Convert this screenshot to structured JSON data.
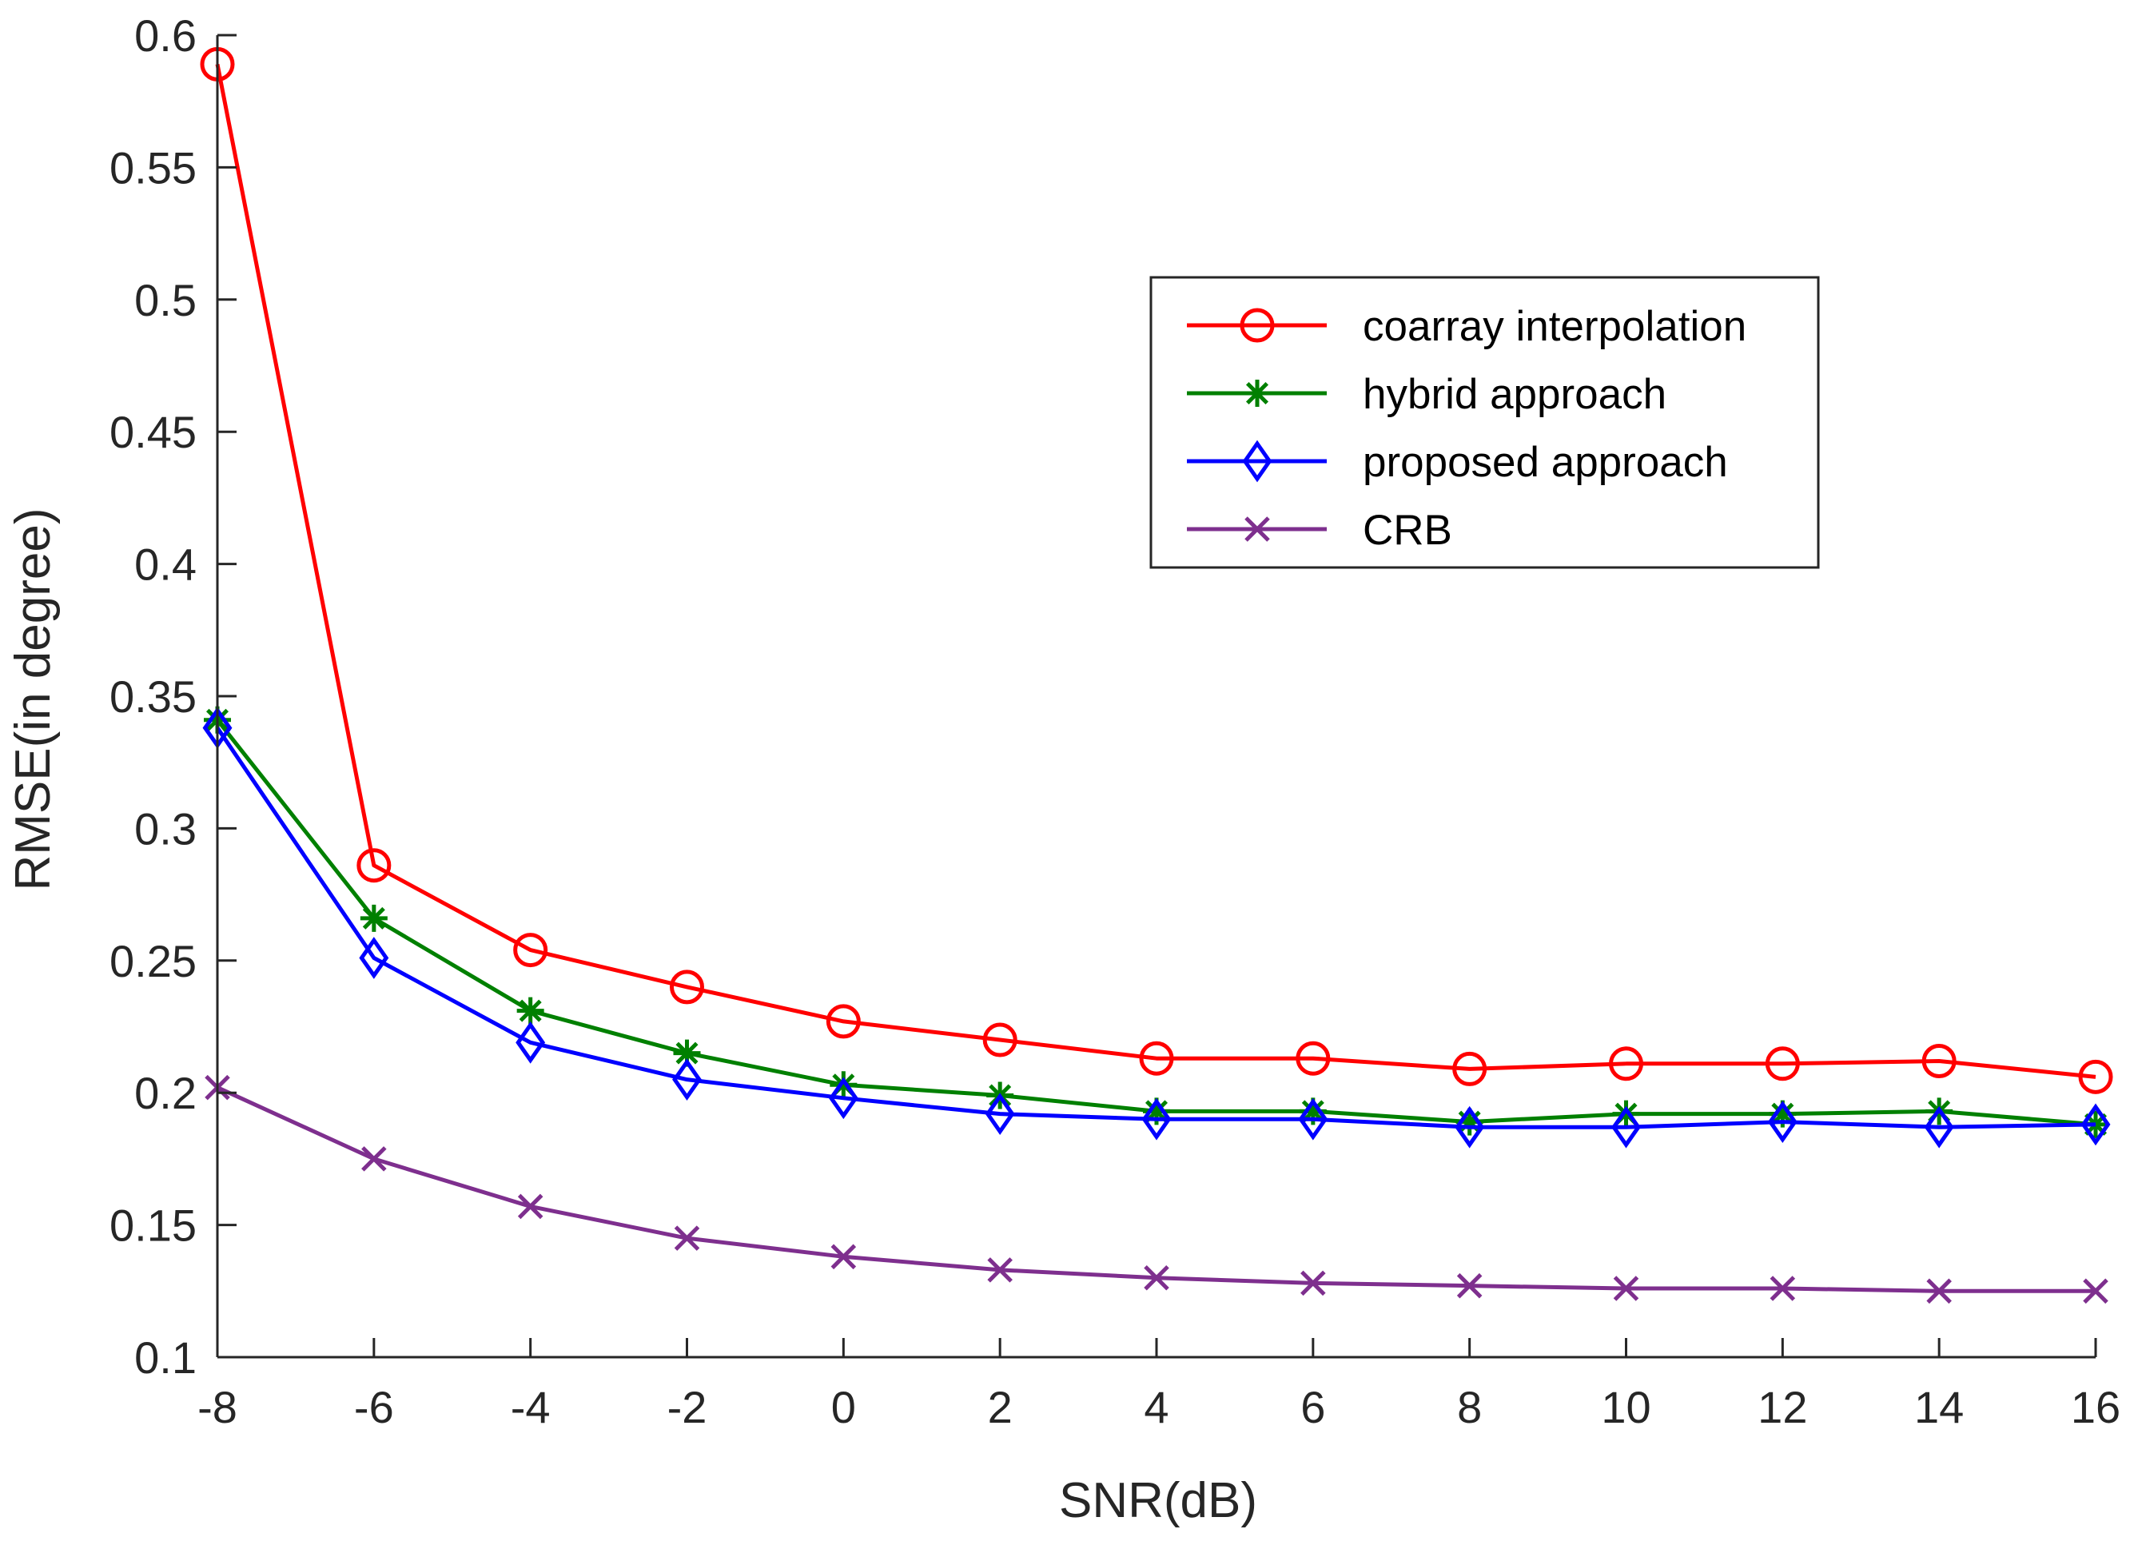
{
  "chart_data": {
    "type": "line",
    "xlabel": "SNR(dB)",
    "ylabel": "RMSE(in degree)",
    "xlim": [
      -8,
      16
    ],
    "ylim": [
      0.1,
      0.6
    ],
    "xticks": [
      -8,
      -6,
      -4,
      -2,
      0,
      2,
      4,
      6,
      8,
      10,
      12,
      14,
      16
    ],
    "yticks": [
      0.1,
      0.15,
      0.2,
      0.25,
      0.3,
      0.35,
      0.4,
      0.45,
      0.5,
      0.55,
      0.6
    ],
    "ytick_labels": [
      "0.1",
      "0.15",
      "0.2",
      "0.25",
      "0.3",
      "0.35",
      "0.4",
      "0.45",
      "0.5",
      "0.55",
      "0.6"
    ],
    "grid": false,
    "legend_position": "upper-right",
    "x": [
      -8,
      -6,
      -4,
      -2,
      0,
      2,
      4,
      6,
      8,
      10,
      12,
      14,
      16
    ],
    "series": [
      {
        "name": "coarray interpolation",
        "color": "#ff0000",
        "marker": "circle",
        "values": [
          0.589,
          0.286,
          0.254,
          0.24,
          0.227,
          0.22,
          0.213,
          0.213,
          0.209,
          0.211,
          0.211,
          0.212,
          0.206
        ]
      },
      {
        "name": "hybrid approach",
        "color": "#008000",
        "marker": "asterisk",
        "values": [
          0.341,
          0.266,
          0.231,
          0.215,
          0.203,
          0.199,
          0.193,
          0.193,
          0.189,
          0.192,
          0.192,
          0.193,
          0.188
        ]
      },
      {
        "name": "proposed approach",
        "color": "#0000ff",
        "marker": "diamond",
        "values": [
          0.338,
          0.251,
          0.219,
          0.205,
          0.198,
          0.192,
          0.19,
          0.19,
          0.187,
          0.187,
          0.189,
          0.187,
          0.188
        ]
      },
      {
        "name": "CRB",
        "color": "#7e2f8e",
        "marker": "x",
        "values": [
          0.202,
          0.175,
          0.157,
          0.145,
          0.138,
          0.133,
          0.13,
          0.128,
          0.127,
          0.126,
          0.126,
          0.125,
          0.125
        ]
      }
    ]
  }
}
